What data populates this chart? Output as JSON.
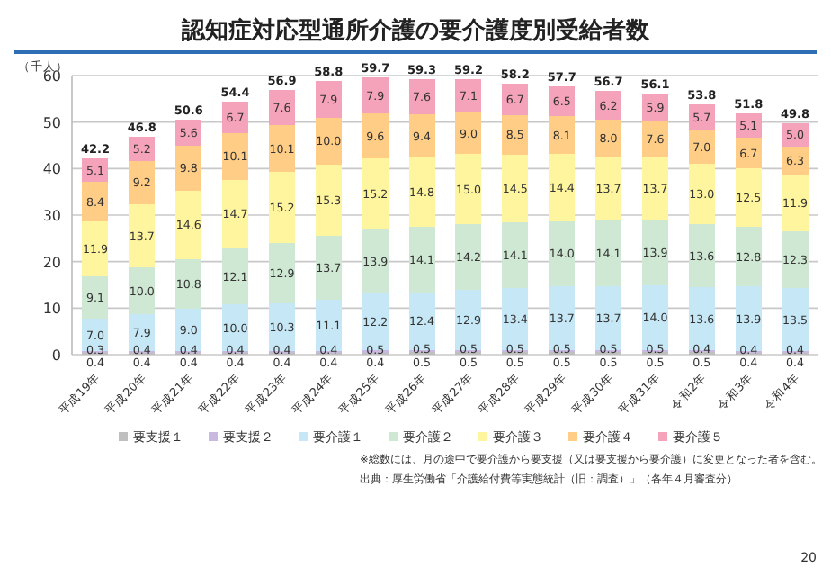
{
  "chart_data": {
    "type": "bar",
    "stacked": true,
    "title": "認知症対応型通所介護の要介護度別受給者数",
    "ylabel": "（千人）",
    "categories": [
      "平成19年",
      "平成20年",
      "平成21年",
      "平成22年",
      "平成23年",
      "平成24年",
      "平成25年",
      "平成26年",
      "平成27年",
      "平成28年",
      "平成29年",
      "平成30年",
      "平成31年",
      "令和2年",
      "令和3年",
      "令和4年"
    ],
    "series": [
      {
        "name": "要支援１",
        "color": "#bfbfbf",
        "values": [
          0.4,
          0.4,
          0.4,
          0.4,
          0.4,
          0.4,
          0.4,
          0.5,
          0.5,
          0.5,
          0.5,
          0.5,
          0.5,
          0.5,
          0.4,
          0.4
        ],
        "value_labels": [
          "0.4",
          "0.4",
          "0.4",
          "0.4",
          "0.4",
          "0.4",
          "0.4",
          "0.5",
          "0.5",
          "0.5",
          "0.5",
          "0.5",
          "0.5",
          "0.5",
          "0.4",
          "0.4"
        ]
      },
      {
        "name": "要支援２",
        "color": "#c9b8e0",
        "values": [
          0.3,
          0.4,
          0.4,
          0.4,
          0.4,
          0.4,
          0.5,
          0.5,
          0.5,
          0.5,
          0.5,
          0.5,
          0.5,
          0.4,
          0.4,
          0.4
        ],
        "value_labels": [
          "0.3",
          "0.4",
          "0.4",
          "0.4",
          "0.4",
          "0.4",
          "0.5",
          "0.5",
          "0.5",
          "0.5",
          "0.5",
          "0.5",
          "0.5",
          "0.4",
          "0.4",
          "0.4"
        ]
      },
      {
        "name": "要介護１",
        "color": "#c6e7f5",
        "values": [
          7.0,
          7.9,
          9.0,
          10.0,
          10.3,
          11.1,
          12.2,
          12.4,
          12.9,
          13.4,
          13.7,
          13.7,
          14.0,
          13.6,
          13.9,
          13.5
        ],
        "value_labels": [
          "7.0",
          "7.9",
          "9.0",
          "10.0",
          "10.3",
          "11.1",
          "12.2",
          "12.4",
          "12.9",
          "13.4",
          "13.7",
          "13.7",
          "14.0",
          "13.6",
          "13.9",
          "13.5"
        ]
      },
      {
        "name": "要介護２",
        "color": "#cfe8d3",
        "values": [
          9.1,
          10.0,
          10.8,
          12.1,
          12.9,
          13.7,
          13.9,
          14.1,
          14.2,
          14.1,
          14.0,
          14.1,
          13.9,
          13.6,
          12.8,
          12.3
        ],
        "value_labels": [
          "9.1",
          "10.0",
          "10.8",
          "12.1",
          "12.9",
          "13.7",
          "13.9",
          "14.1",
          "14.2",
          "14.1",
          "14.0",
          "14.1",
          "13.9",
          "13.6",
          "12.8",
          "12.3"
        ]
      },
      {
        "name": "要介護３",
        "color": "#fff59e",
        "values": [
          11.9,
          13.7,
          14.6,
          14.7,
          15.2,
          15.3,
          15.2,
          14.8,
          15.0,
          14.5,
          14.4,
          13.7,
          13.7,
          13.0,
          12.5,
          11.9
        ],
        "value_labels": [
          "11.9",
          "13.7",
          "14.6",
          "14.7",
          "15.2",
          "15.3",
          "15.2",
          "14.8",
          "15.0",
          "14.5",
          "14.4",
          "13.7",
          "13.7",
          "13.0",
          "12.5",
          "11.9"
        ]
      },
      {
        "name": "要介護４",
        "color": "#ffcd85",
        "values": [
          8.4,
          9.2,
          9.8,
          10.1,
          10.1,
          10.0,
          9.6,
          9.4,
          9.0,
          8.5,
          8.1,
          8.0,
          7.6,
          7.0,
          6.7,
          6.3
        ],
        "value_labels": [
          "8.4",
          "9.2",
          "9.8",
          "10.1",
          "10.1",
          "10.0",
          "9.6",
          "9.4",
          "9.0",
          "8.5",
          "8.1",
          "8.0",
          "7.6",
          "7.0",
          "6.7",
          "6.3"
        ]
      },
      {
        "name": "要介護５",
        "color": "#f5a3ba",
        "values": [
          5.1,
          5.2,
          5.6,
          6.7,
          7.6,
          7.9,
          7.9,
          7.6,
          7.1,
          6.7,
          6.5,
          6.2,
          5.9,
          5.7,
          5.1,
          5.0
        ],
        "value_labels": [
          "5.1",
          "5.2",
          "5.6",
          "6.7",
          "7.6",
          "7.9",
          "7.9",
          "7.6",
          "7.1",
          "6.7",
          "6.5",
          "6.2",
          "5.9",
          "5.7",
          "5.1",
          "5.0"
        ]
      }
    ],
    "totals": [
      "42.2",
      "46.8",
      "50.6",
      "54.4",
      "56.9",
      "58.8",
      "59.7",
      "59.3",
      "59.2",
      "58.2",
      "57.7",
      "56.7",
      "56.1",
      "53.8",
      "51.8",
      "49.8"
    ],
    "ylim": [
      0,
      60
    ],
    "yticks": [
      0,
      10,
      20,
      30,
      40,
      50,
      60
    ],
    "grid": "y",
    "legend": "bottom",
    "annotations": [
      "※総数には、月の途中で要介護から要支援（又は要支援から要介護）に変更となった者を含む。",
      "出典：厚生労働省「介護給付費等実態統計（旧：調査）」（各年４月審査分）",
      "20"
    ]
  }
}
